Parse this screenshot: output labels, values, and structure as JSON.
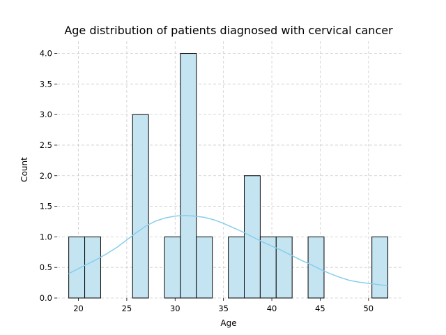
{
  "chart_data": {
    "type": "bar",
    "title": "Age distribution of patients diagnosed with cervical cancer",
    "xlabel": "Age",
    "ylabel": "Count",
    "xlim": [
      17.8,
      53.4
    ],
    "ylim": [
      0,
      4.2
    ],
    "xticks": [
      20,
      25,
      30,
      35,
      40,
      45,
      50
    ],
    "yticks": [
      0.0,
      0.5,
      1.0,
      1.5,
      2.0,
      2.5,
      3.0,
      3.5,
      4.0
    ],
    "grid": true,
    "bins": {
      "start": 19,
      "width": 1.65,
      "counts": [
        1,
        1,
        0,
        0,
        3,
        0,
        1,
        4,
        1,
        0,
        1,
        2,
        1,
        1,
        0,
        1,
        0,
        0,
        0,
        1
      ]
    },
    "kde": {
      "x": [
        19,
        20,
        21,
        22,
        23,
        24,
        25,
        26,
        27,
        28,
        29,
        30,
        31,
        32,
        33,
        34,
        35,
        36,
        37,
        38,
        39,
        40,
        41,
        42,
        43,
        44,
        45,
        46,
        47,
        48,
        49,
        50,
        51,
        52
      ],
      "y": [
        0.4,
        0.48,
        0.56,
        0.64,
        0.73,
        0.83,
        0.95,
        1.07,
        1.18,
        1.26,
        1.31,
        1.34,
        1.35,
        1.34,
        1.32,
        1.28,
        1.22,
        1.15,
        1.08,
        1.0,
        0.92,
        0.85,
        0.78,
        0.7,
        0.62,
        0.55,
        0.47,
        0.4,
        0.34,
        0.29,
        0.26,
        0.24,
        0.22,
        0.2
      ]
    },
    "colors": {
      "bar_fill": "#c4e4f2",
      "kde_line": "#87ceeb",
      "grid": "#cccccc"
    }
  }
}
